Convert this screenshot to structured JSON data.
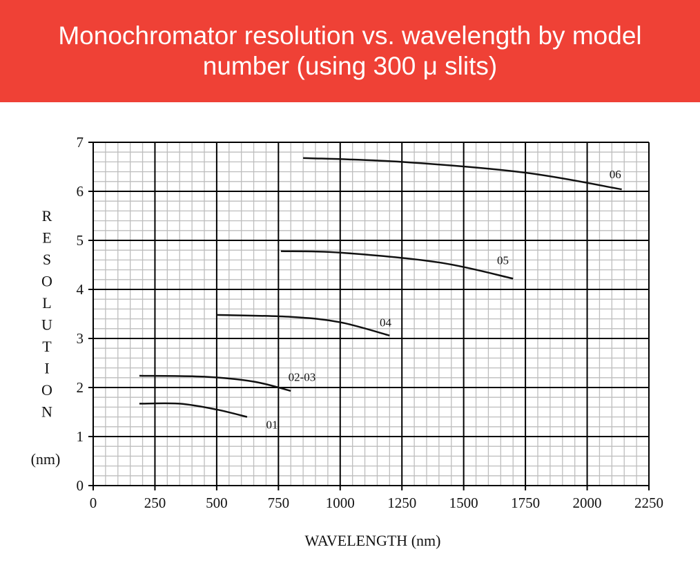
{
  "title": "Monochromator resolution vs. wavelength by model number (using 300 μ slits)",
  "colors": {
    "title_bg": "#EF4136",
    "title_text": "#ffffff",
    "grid_minor": "#bdbdbd",
    "grid_major": "#000000",
    "curve": "#111111"
  },
  "chart_data": {
    "type": "line",
    "title": "Monochromator resolution vs. wavelength by model number (using 300 μ slits)",
    "xlabel": "WAVELENGTH (nm)",
    "ylabel_letters": [
      "R",
      "E",
      "S",
      "O",
      "L",
      "U",
      "T",
      "I",
      "O",
      "N"
    ],
    "ylabel_unit": "(nm)",
    "xlim": [
      0,
      2250
    ],
    "ylim": [
      0,
      7
    ],
    "xticks": [
      0,
      250,
      500,
      750,
      1000,
      1250,
      1500,
      1750,
      2000,
      2250
    ],
    "yticks": [
      0,
      1,
      2,
      3,
      4,
      5,
      6,
      7
    ],
    "x_minor_step": 50,
    "y_minor_step": 0.2,
    "grid": true,
    "legend": "inline labels at curve ends",
    "series": [
      {
        "name": "01",
        "x": [
          187,
          350,
          500,
          623
        ],
        "y": [
          1.67,
          1.67,
          1.55,
          1.4
        ],
        "label_at": [
          700,
          1.25
        ]
      },
      {
        "name": "02-03",
        "x": [
          187,
          450,
          650,
          800
        ],
        "y": [
          2.24,
          2.22,
          2.12,
          1.93
        ],
        "label_at": [
          790,
          2.22
        ]
      },
      {
        "name": "04",
        "x": [
          500,
          800,
          1000,
          1200
        ],
        "y": [
          3.48,
          3.44,
          3.33,
          3.06
        ],
        "label_at": [
          1160,
          3.33
        ]
      },
      {
        "name": "05",
        "x": [
          760,
          1000,
          1400,
          1700
        ],
        "y": [
          4.78,
          4.75,
          4.55,
          4.22
        ],
        "label_at": [
          1635,
          4.6
        ]
      },
      {
        "name": "06",
        "x": [
          850,
          1250,
          1750,
          2140
        ],
        "y": [
          6.68,
          6.6,
          6.38,
          6.04
        ],
        "label_at": [
          2090,
          6.35
        ]
      }
    ]
  }
}
